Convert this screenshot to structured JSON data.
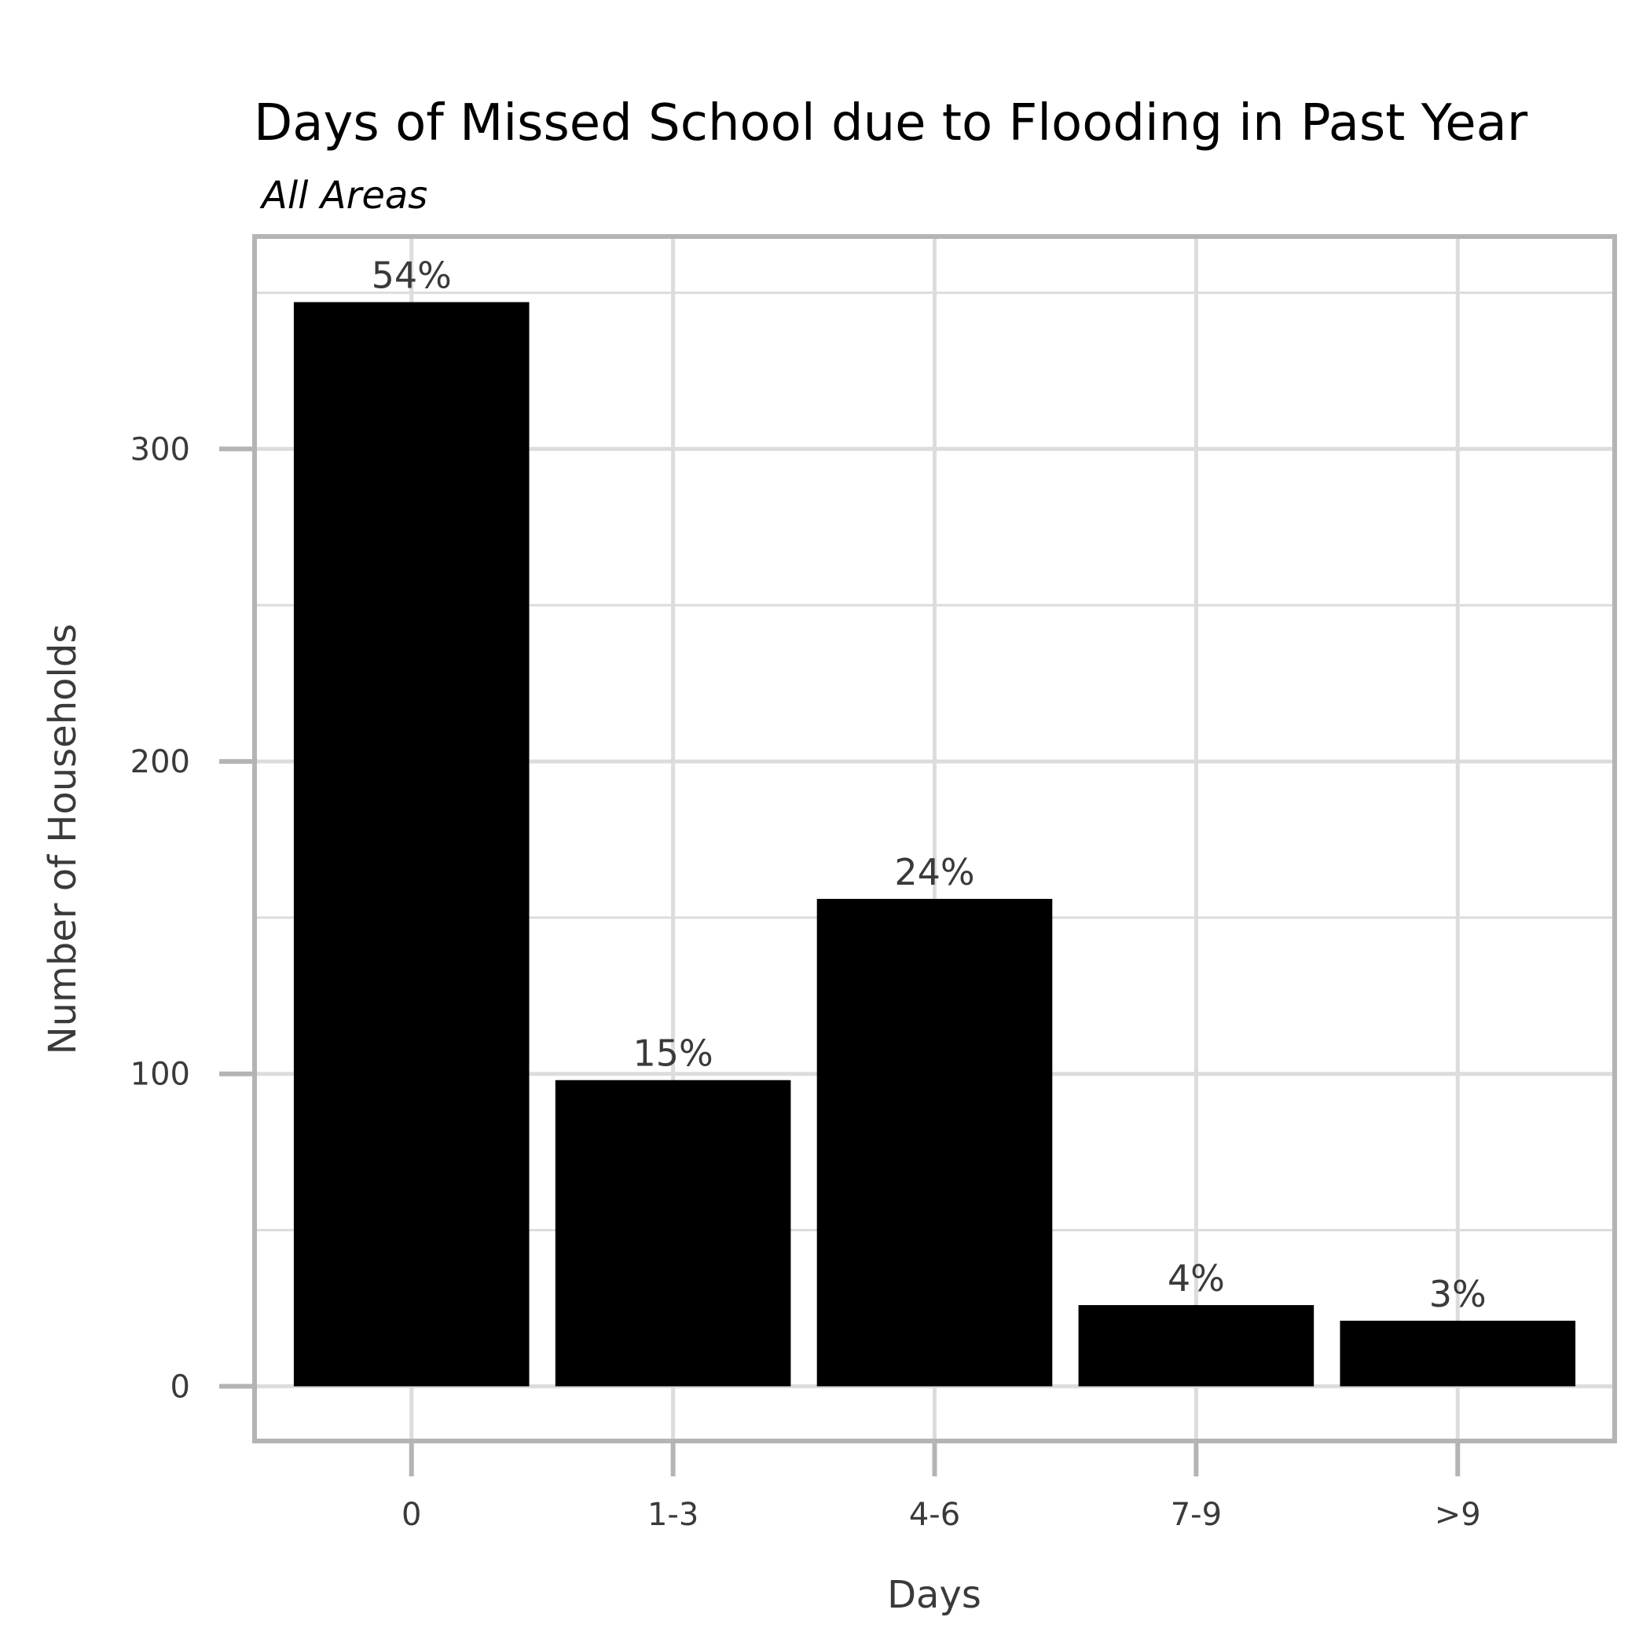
{
  "chart_data": {
    "type": "bar",
    "title": "Days of Missed School due to Flooding in Past Year",
    "subtitle": "All Areas",
    "xlabel": "Days",
    "ylabel": "Number of Households",
    "categories": [
      "0",
      "1-3",
      "4-6",
      "7-9",
      ">9"
    ],
    "values": [
      347,
      98,
      156,
      26,
      21
    ],
    "data_labels": [
      "54%",
      "15%",
      "24%",
      "4%",
      "3%"
    ],
    "ylim": [
      -17.5,
      368
    ],
    "yticks": [
      0,
      100,
      200,
      300
    ],
    "ytick_labels": [
      "0",
      "100",
      "200",
      "300"
    ],
    "grid": true,
    "bar_color": "#000000",
    "grid_color": "#dcdcdc",
    "frame_color": "#b4b4b4",
    "background": "#ffffff"
  }
}
